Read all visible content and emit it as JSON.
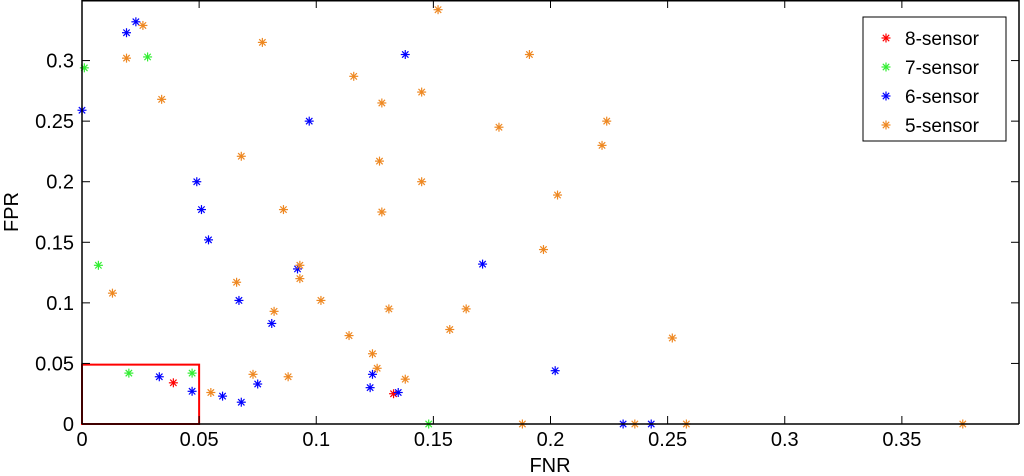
{
  "chart_data": {
    "type": "scatter",
    "xlabel": "FNR",
    "ylabel": "FPR",
    "xlim": [
      0,
      0.4
    ],
    "ylim": [
      0,
      0.35
    ],
    "x_ticks": [
      {
        "value": 0,
        "label": "0"
      },
      {
        "value": 0.05,
        "label": "0.05"
      },
      {
        "value": 0.1,
        "label": "0.1"
      },
      {
        "value": 0.15,
        "label": "0.15"
      },
      {
        "value": 0.2,
        "label": "0.2"
      },
      {
        "value": 0.25,
        "label": "0.25"
      },
      {
        "value": 0.3,
        "label": "0.3"
      },
      {
        "value": 0.35,
        "label": "0.35"
      }
    ],
    "y_ticks": [
      {
        "value": 0,
        "label": "0"
      },
      {
        "value": 0.05,
        "label": "0.05"
      },
      {
        "value": 0.1,
        "label": "0.1"
      },
      {
        "value": 0.15,
        "label": "0.15"
      },
      {
        "value": 0.2,
        "label": "0.2"
      },
      {
        "value": 0.25,
        "label": "0.25"
      },
      {
        "value": 0.3,
        "label": "0.3"
      }
    ],
    "grid": false,
    "legend_position": "top-right",
    "marker": "asterisk",
    "series": [
      {
        "name": "8-sensor",
        "color": "#ff0000",
        "points": [
          [
            0.039,
            0.034
          ],
          [
            0.133,
            0.025
          ]
        ]
      },
      {
        "name": "7-sensor",
        "color": "#33ee33",
        "points": [
          [
            0.001,
            0.294
          ],
          [
            0.028,
            0.303
          ],
          [
            0.007,
            0.131
          ],
          [
            0.02,
            0.042
          ],
          [
            0.047,
            0.042
          ],
          [
            0.148,
            0.0
          ]
        ]
      },
      {
        "name": "6-sensor",
        "color": "#0000ff",
        "points": [
          [
            0.023,
            0.332
          ],
          [
            0.019,
            0.323
          ],
          [
            0.0,
            0.259
          ],
          [
            0.138,
            0.305
          ],
          [
            0.097,
            0.25
          ],
          [
            0.049,
            0.2
          ],
          [
            0.051,
            0.177
          ],
          [
            0.054,
            0.152
          ],
          [
            0.092,
            0.128
          ],
          [
            0.171,
            0.132
          ],
          [
            0.067,
            0.102
          ],
          [
            0.081,
            0.083
          ],
          [
            0.033,
            0.039
          ],
          [
            0.047,
            0.027
          ],
          [
            0.06,
            0.023
          ],
          [
            0.068,
            0.018
          ],
          [
            0.075,
            0.033
          ],
          [
            0.124,
            0.041
          ],
          [
            0.123,
            0.03
          ],
          [
            0.135,
            0.026
          ],
          [
            0.202,
            0.044
          ],
          [
            0.231,
            0.0
          ],
          [
            0.243,
            0.0
          ]
        ]
      },
      {
        "name": "5-sensor",
        "color": "#ee8822",
        "points": [
          [
            0.152,
            0.342
          ],
          [
            0.026,
            0.329
          ],
          [
            0.019,
            0.302
          ],
          [
            0.077,
            0.315
          ],
          [
            0.191,
            0.305
          ],
          [
            0.116,
            0.287
          ],
          [
            0.128,
            0.265
          ],
          [
            0.145,
            0.274
          ],
          [
            0.034,
            0.268
          ],
          [
            0.178,
            0.245
          ],
          [
            0.224,
            0.25
          ],
          [
            0.222,
            0.23
          ],
          [
            0.068,
            0.221
          ],
          [
            0.127,
            0.217
          ],
          [
            0.145,
            0.2
          ],
          [
            0.203,
            0.189
          ],
          [
            0.086,
            0.177
          ],
          [
            0.128,
            0.175
          ],
          [
            0.197,
            0.144
          ],
          [
            0.066,
            0.117
          ],
          [
            0.093,
            0.131
          ],
          [
            0.093,
            0.12
          ],
          [
            0.013,
            0.108
          ],
          [
            0.082,
            0.093
          ],
          [
            0.102,
            0.102
          ],
          [
            0.131,
            0.095
          ],
          [
            0.164,
            0.095
          ],
          [
            0.157,
            0.078
          ],
          [
            0.114,
            0.073
          ],
          [
            0.252,
            0.071
          ],
          [
            0.124,
            0.058
          ],
          [
            0.126,
            0.046
          ],
          [
            0.073,
            0.041
          ],
          [
            0.088,
            0.039
          ],
          [
            0.138,
            0.037
          ],
          [
            0.055,
            0.026
          ],
          [
            0.188,
            0.0
          ],
          [
            0.236,
            0.0
          ],
          [
            0.258,
            0.0
          ],
          [
            0.376,
            0.0
          ]
        ]
      }
    ],
    "annotations": [
      {
        "type": "rectangle",
        "x": [
          0,
          0.05
        ],
        "y": [
          0,
          0.049
        ],
        "color": "#ff0000"
      }
    ]
  }
}
